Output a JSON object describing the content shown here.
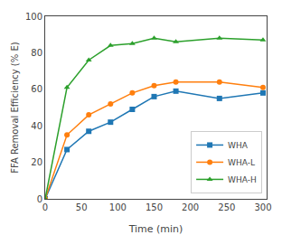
{
  "chart_data": {
    "type": "line",
    "x_label": "Time (min)",
    "y_label": "FFA Removal Efficiency (% E)",
    "series": [
      {
        "name": "WHA",
        "marker": "square",
        "x": [
          0,
          30,
          60,
          90,
          120,
          150,
          180,
          240,
          300
        ],
        "values": [
          0,
          27,
          37,
          42,
          49,
          56,
          59,
          55,
          58
        ]
      },
      {
        "name": "WHA-L",
        "marker": "circle",
        "x": [
          0,
          30,
          60,
          90,
          120,
          150,
          180,
          240,
          300
        ],
        "values": [
          0,
          35,
          46,
          52,
          58,
          62,
          64,
          64,
          61
        ]
      },
      {
        "name": "WHA-H",
        "marker": "triangle-up",
        "x": [
          0,
          30,
          60,
          90,
          120,
          150,
          180,
          240,
          300
        ],
        "values": [
          0,
          61,
          76,
          84,
          85,
          88,
          86,
          88,
          87
        ]
      }
    ],
    "xlim": [
      0,
      305
    ],
    "ylim": [
      0,
      100
    ],
    "xticks": [
      0,
      50,
      100,
      150,
      200,
      250,
      300
    ],
    "yticks": [
      0,
      20,
      40,
      60,
      80,
      100
    ],
    "grid": false,
    "legend": "lower right"
  }
}
